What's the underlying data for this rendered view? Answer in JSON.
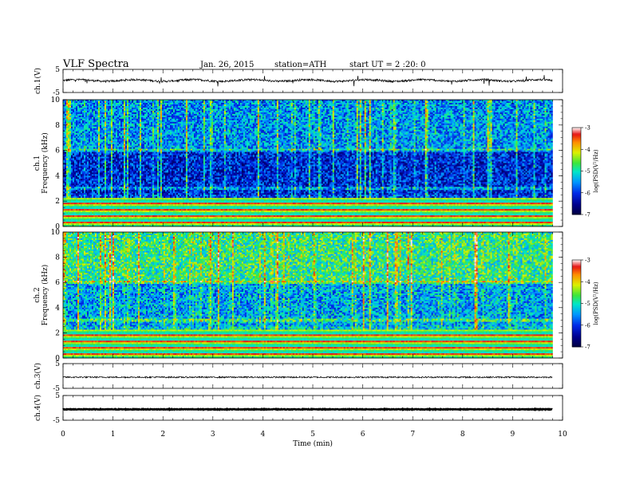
{
  "header": {
    "title": "VLF Spectra",
    "date": "Jan. 26, 2015",
    "station": "station=ATH",
    "start": "start UT =  2 :20: 0"
  },
  "chart_data": [
    {
      "type": "line",
      "panel": "waveform-ch1",
      "ylabel": "ch.1(V)",
      "ylim": [
        -5,
        5
      ],
      "yticks": [
        "5",
        "-5"
      ],
      "xlim": [
        0,
        10
      ],
      "mean_level": 0.2
    },
    {
      "type": "heatmap",
      "panel": "spectrogram-ch1",
      "ylabel": "ch.1\nFrequency (kHz)",
      "ylabel_ch": "ch.1",
      "ylabel_freq": "Frequency (kHz)",
      "ylim": [
        0,
        10
      ],
      "yticks": [
        "0",
        "2",
        "4",
        "6",
        "8",
        "10"
      ],
      "xlim": [
        0,
        10
      ],
      "data_end_min": 9.8,
      "colorbar": {
        "label": "log(PSD(V²/Hz)",
        "range": [
          -7,
          -3
        ],
        "ticks": [
          "-3",
          "-4",
          "-5",
          "-6",
          "-7"
        ]
      }
    },
    {
      "type": "heatmap",
      "panel": "spectrogram-ch2",
      "ylabel": "ch.2\nFrequency (kHz)",
      "ylabel_ch": "ch.2",
      "ylabel_freq": "Frequency (kHz)",
      "ylim": [
        0,
        10
      ],
      "yticks": [
        "0",
        "2",
        "4",
        "6",
        "8",
        "10"
      ],
      "xlim": [
        0,
        10
      ],
      "data_end_min": 9.8,
      "colorbar": {
        "label": "log(PSD(V²/Hz)",
        "range": [
          -7,
          -3
        ],
        "ticks": [
          "-3",
          "-4",
          "-5",
          "-6",
          "-7"
        ]
      }
    },
    {
      "type": "line",
      "panel": "waveform-ch3",
      "ylabel": "ch.3(V)",
      "ylim": [
        -5,
        5
      ],
      "yticks": [
        "5",
        "-5"
      ],
      "xlim": [
        0,
        10
      ],
      "mean_level": -0.5
    },
    {
      "type": "line",
      "panel": "waveform-ch4",
      "ylabel": "ch.4(V)",
      "ylim": [
        -5,
        5
      ],
      "yticks": [
        "5",
        "-5"
      ],
      "xlim": [
        0,
        10
      ],
      "mean_level": -0.6
    }
  ],
  "xaxis": {
    "label": "Time  (min)",
    "ticks": [
      "0",
      "1",
      "2",
      "3",
      "4",
      "5",
      "6",
      "7",
      "8",
      "9",
      "10"
    ]
  }
}
